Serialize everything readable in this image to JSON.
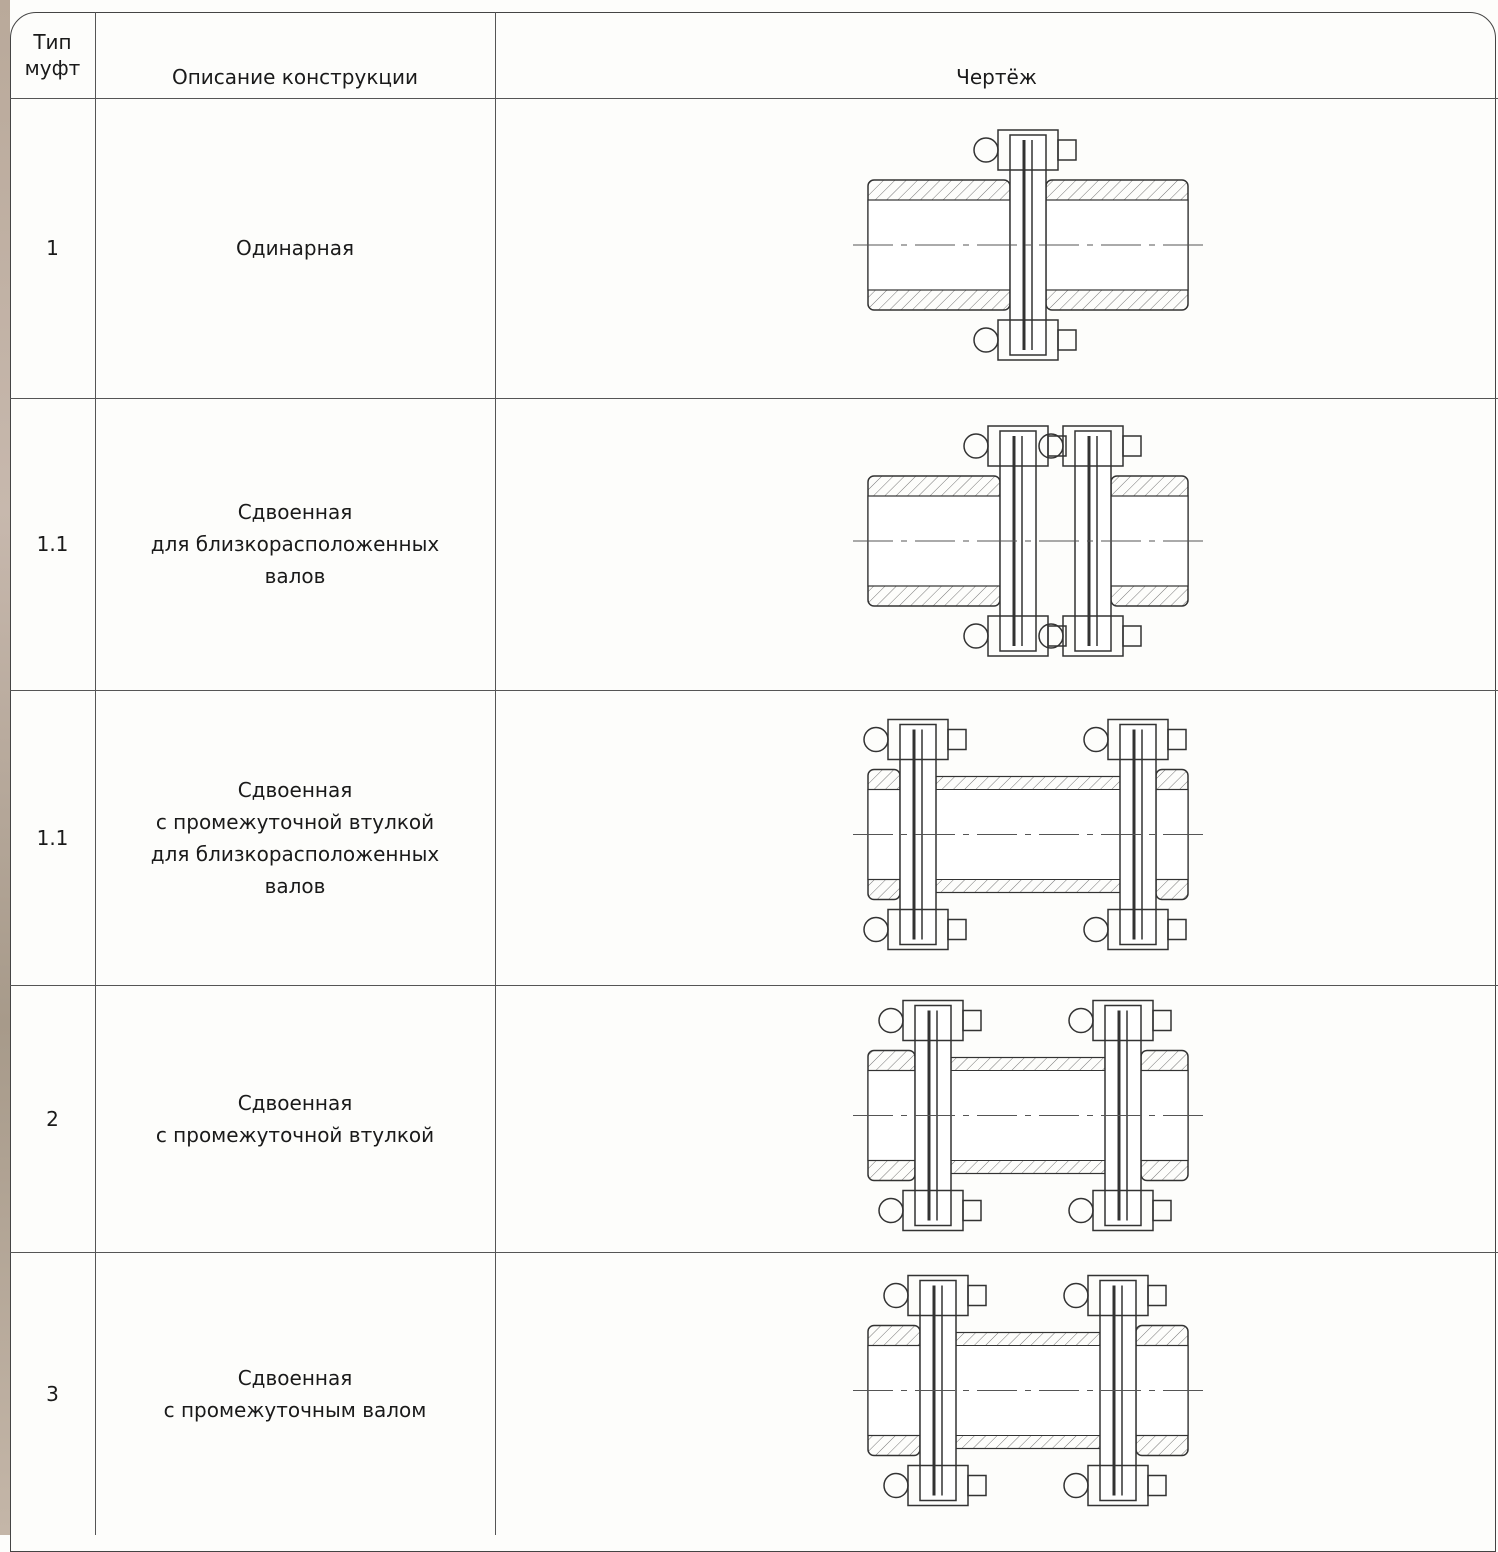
{
  "header": {
    "type": [
      "Тип",
      "муфт"
    ],
    "description": "Описание конструкции",
    "drawing": "Чертёж"
  },
  "rows": [
    {
      "type": "1",
      "description": [
        "Одинарная"
      ]
    },
    {
      "type": "1.1",
      "description": [
        "Сдвоенная",
        "для близкорасположенных",
        "валов"
      ]
    },
    {
      "type": "1.1",
      "description": [
        "Сдвоенная",
        "с промежуточной втулкой",
        "для близкорасположенных",
        "валов"
      ]
    },
    {
      "type": "2",
      "description": [
        "Сдвоенная",
        "с промежуточной втулкой"
      ]
    },
    {
      "type": "3",
      "description": [
        "Сдвоенная",
        "с промежуточным валом"
      ]
    }
  ]
}
